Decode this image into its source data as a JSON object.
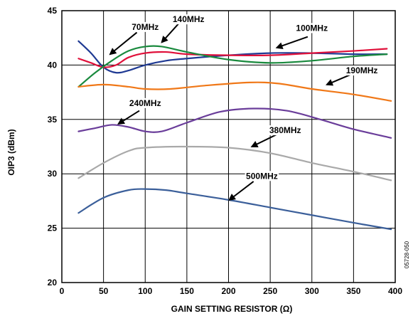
{
  "chart_data": {
    "type": "line",
    "xlabel": "GAIN SETTING RESISTOR (Ω)",
    "ylabel": "OIP3 (dBm)",
    "xlim": [
      0,
      400
    ],
    "ylim": [
      20,
      45
    ],
    "xticks": [
      0,
      50,
      100,
      150,
      200,
      250,
      300,
      350,
      400
    ],
    "yticks": [
      20,
      25,
      30,
      35,
      40,
      45
    ],
    "grid": true,
    "figure_code": "05728-050",
    "series": [
      {
        "name": "70MHz",
        "color": "#1f3a93",
        "points": [
          [
            20,
            42.2
          ],
          [
            35,
            41.1
          ],
          [
            50,
            39.8
          ],
          [
            65,
            39.3
          ],
          [
            80,
            39.5
          ],
          [
            100,
            40.0
          ],
          [
            125,
            40.4
          ],
          [
            150,
            40.6
          ],
          [
            200,
            40.9
          ],
          [
            250,
            41.1
          ],
          [
            300,
            41.1
          ],
          [
            350,
            41.0
          ],
          [
            390,
            41.0
          ]
        ]
      },
      {
        "name": "100MHz",
        "color": "#e0103a",
        "points": [
          [
            20,
            40.6
          ],
          [
            35,
            40.2
          ],
          [
            50,
            39.8
          ],
          [
            65,
            40.0
          ],
          [
            80,
            40.7
          ],
          [
            100,
            41.1
          ],
          [
            125,
            41.2
          ],
          [
            150,
            41.0
          ],
          [
            200,
            40.9
          ],
          [
            250,
            40.9
          ],
          [
            300,
            41.1
          ],
          [
            350,
            41.3
          ],
          [
            390,
            41.5
          ]
        ]
      },
      {
        "name": "140MHz",
        "color": "#1a8a3e",
        "points": [
          [
            20,
            38.0
          ],
          [
            40,
            39.3
          ],
          [
            60,
            40.4
          ],
          [
            80,
            41.3
          ],
          [
            100,
            41.7
          ],
          [
            120,
            41.7
          ],
          [
            150,
            41.2
          ],
          [
            200,
            40.5
          ],
          [
            250,
            40.2
          ],
          [
            300,
            40.4
          ],
          [
            350,
            40.8
          ],
          [
            390,
            41.0
          ]
        ]
      },
      {
        "name": "190MHz",
        "color": "#f07818",
        "points": [
          [
            20,
            38.0
          ],
          [
            50,
            38.2
          ],
          [
            80,
            38.0
          ],
          [
            100,
            37.8
          ],
          [
            130,
            37.8
          ],
          [
            170,
            38.1
          ],
          [
            225,
            38.4
          ],
          [
            260,
            38.3
          ],
          [
            300,
            37.8
          ],
          [
            350,
            37.3
          ],
          [
            395,
            36.7
          ]
        ]
      },
      {
        "name": "240MHz",
        "color": "#6a3d9a",
        "points": [
          [
            20,
            33.9
          ],
          [
            40,
            34.2
          ],
          [
            60,
            34.5
          ],
          [
            80,
            34.3
          ],
          [
            100,
            33.9
          ],
          [
            120,
            33.9
          ],
          [
            150,
            34.7
          ],
          [
            190,
            35.7
          ],
          [
            230,
            36.0
          ],
          [
            270,
            35.8
          ],
          [
            310,
            35.0
          ],
          [
            350,
            34.1
          ],
          [
            395,
            33.3
          ]
        ]
      },
      {
        "name": "380MHz",
        "color": "#a9a9a9",
        "points": [
          [
            20,
            29.6
          ],
          [
            50,
            31.0
          ],
          [
            80,
            32.1
          ],
          [
            100,
            32.4
          ],
          [
            150,
            32.5
          ],
          [
            200,
            32.4
          ],
          [
            250,
            31.9
          ],
          [
            300,
            31.0
          ],
          [
            350,
            30.2
          ],
          [
            395,
            29.4
          ]
        ]
      },
      {
        "name": "500MHz",
        "color": "#3b5f9a",
        "points": [
          [
            20,
            26.4
          ],
          [
            50,
            27.8
          ],
          [
            80,
            28.5
          ],
          [
            100,
            28.6
          ],
          [
            125,
            28.5
          ],
          [
            150,
            28.2
          ],
          [
            200,
            27.6
          ],
          [
            250,
            26.9
          ],
          [
            300,
            26.2
          ],
          [
            350,
            25.5
          ],
          [
            395,
            24.9
          ]
        ]
      }
    ],
    "annotations": [
      {
        "label": "70MHz",
        "text_x": 100,
        "text_y": 43.5,
        "arrow_from": [
          90,
          43.0
        ],
        "arrow_to": [
          58,
          41.0
        ]
      },
      {
        "label": "140MHz",
        "text_x": 152,
        "text_y": 44.2,
        "arrow_from": [
          140,
          43.8
        ],
        "arrow_to": [
          120,
          42.1
        ]
      },
      {
        "label": "100MHz",
        "text_x": 300,
        "text_y": 43.4,
        "arrow_from": [
          295,
          42.6
        ],
        "arrow_to": [
          258,
          41.6
        ]
      },
      {
        "label": "190MHz",
        "text_x": 360,
        "text_y": 39.5,
        "arrow_from": [
          352,
          39.3
        ],
        "arrow_to": [
          318,
          38.2
        ]
      },
      {
        "label": "240MHz",
        "text_x": 100,
        "text_y": 36.5,
        "arrow_from": [
          93,
          35.8
        ],
        "arrow_to": [
          68,
          34.6
        ]
      },
      {
        "label": "380MHz",
        "text_x": 268,
        "text_y": 34.0,
        "arrow_from": [
          260,
          33.7
        ],
        "arrow_to": [
          228,
          32.5
        ]
      },
      {
        "label": "500MHz",
        "text_x": 240,
        "text_y": 29.8,
        "arrow_from": [
          230,
          29.3
        ],
        "arrow_to": [
          201,
          27.6
        ]
      }
    ]
  }
}
